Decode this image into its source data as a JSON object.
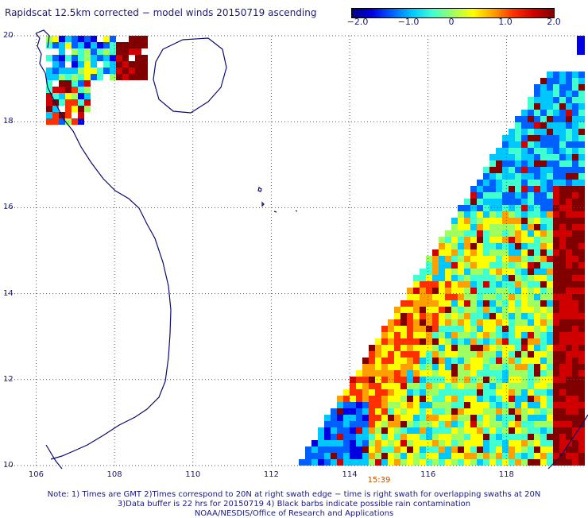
{
  "title": "Rapidscat 12.5km corrected − model winds 20150719 ascending",
  "colorbar": {
    "ticks": [
      "−2.0",
      "−1.0",
      "0",
      "1.0",
      "2.0"
    ],
    "tick_values": [
      -2.0,
      -1.0,
      0,
      1.0,
      2.0
    ],
    "colors": [
      "#000080",
      "#0000e0",
      "#0060ff",
      "#00c8ff",
      "#40ffd0",
      "#a0ff60",
      "#ffff00",
      "#ffa000",
      "#ff3000",
      "#d00000",
      "#800000"
    ]
  },
  "map": {
    "lon_range": [
      105.2,
      120
    ],
    "lat_range": [
      10,
      20
    ],
    "lat_labels": [
      "20",
      "18",
      "16",
      "14",
      "12",
      "10"
    ],
    "lon_labels": [
      "106",
      "108",
      "110",
      "112",
      "114",
      "116",
      "118"
    ]
  },
  "timestamp": "15:39",
  "notes": [
    "Note: 1) Times are GMT 2)Times correspond to 20N at right swath edge − time is right swath for overlapping swaths at 20N",
    "3)Data buffer is 22 hrs for 20150719 4) Black barbs indicate possible rain contamination",
    "NOAA/NESDIS/Office of Research and Applications"
  ]
}
